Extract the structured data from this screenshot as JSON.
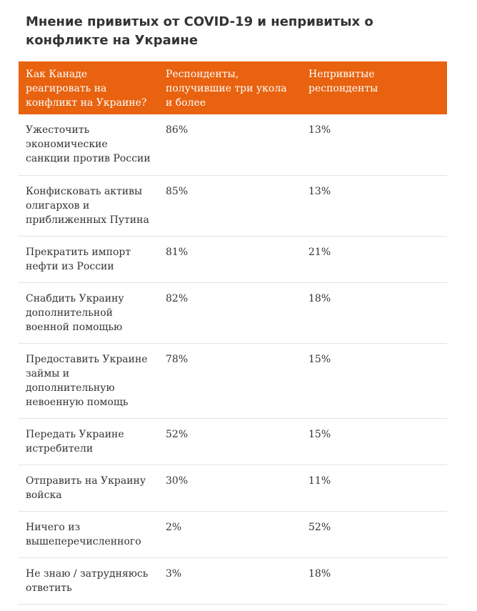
{
  "title": "Мнение привитых от COVID-19 и непривитых о конфликте на Украине",
  "table": {
    "headers": [
      "Как Канаде реагировать на конфликт на Украине?",
      "Респонденты, получившие три укола и более",
      "Непривитые респонденты"
    ],
    "rows": [
      {
        "action": "Ужесточить экономические санкции против России",
        "vaccinated": "86%",
        "unvaccinated": "13%"
      },
      {
        "action": "Конфисковать активы олигархов и приближенных Путина",
        "vaccinated": "85%",
        "unvaccinated": "13%"
      },
      {
        "action": "Прекратить импорт нефти из России",
        "vaccinated": "81%",
        "unvaccinated": "21%"
      },
      {
        "action": "Снабдить Украину дополнительной военной помощью",
        "vaccinated": "82%",
        "unvaccinated": "18%"
      },
      {
        "action": "Предоставить Украине займы и дополнительную невоенную помощь",
        "vaccinated": "78%",
        "unvaccinated": "15%"
      },
      {
        "action": "Передать Украине истребители",
        "vaccinated": "52%",
        "unvaccinated": "15%"
      },
      {
        "action": "Отправить на Украину войска",
        "vaccinated": "30%",
        "unvaccinated": "11%"
      },
      {
        "action": "Ничего из вышеперечисленного",
        "vaccinated": "2%",
        "unvaccinated": "52%"
      },
      {
        "action": "Не знаю / затрудняюсь ответить",
        "vaccinated": "3%",
        "unvaccinated": "18%"
      }
    ]
  },
  "colors": {
    "header_background": "#e8620f",
    "header_text": "#ffffff",
    "body_text": "#333333",
    "row_divider": "#e3e3e3"
  }
}
